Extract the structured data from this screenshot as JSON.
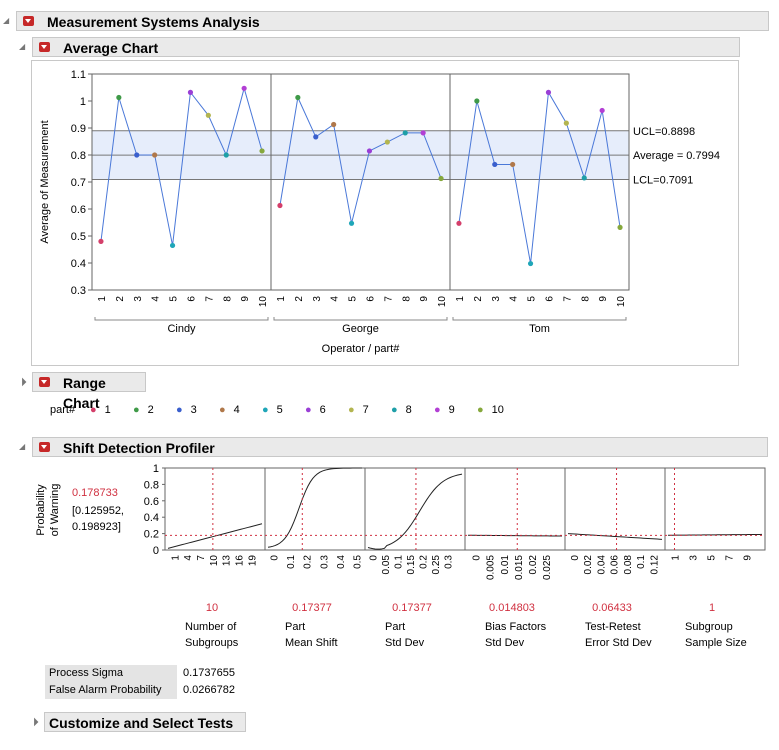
{
  "title": "Measurement Systems Analysis",
  "sections": {
    "average": "Average Chart",
    "range": "Range Chart",
    "profiler": "Shift Detection Profiler",
    "customize": "Customize and Select Tests"
  },
  "part_colors": {
    "1": "#d43f6a",
    "2": "#3f9a48",
    "3": "#3a5fcd",
    "4": "#b0784a",
    "5": "#1fa6b8",
    "6": "#9a3fd6",
    "7": "#b3b550",
    "8": "#1e9fa8",
    "9": "#b23fd4",
    "10": "#86a83c"
  },
  "legend": {
    "label": "part#",
    "items": [
      "1",
      "2",
      "3",
      "4",
      "5",
      "6",
      "7",
      "8",
      "9",
      "10"
    ]
  },
  "chart_data": {
    "type": "line",
    "ylabel": "Average of Measurement",
    "xlabel": "Operator / part#",
    "ylim": [
      0.3,
      1.1
    ],
    "yticks": [
      "0.3",
      "0.4",
      "0.5",
      "0.6",
      "0.7",
      "0.8",
      "0.9",
      "1",
      "1.1"
    ],
    "parts": [
      "1",
      "2",
      "3",
      "4",
      "5",
      "6",
      "7",
      "8",
      "9",
      "10"
    ],
    "groups": [
      {
        "name": "Cindy",
        "values": [
          0.48,
          1.013,
          0.8,
          0.8,
          0.465,
          1.032,
          0.947,
          0.8,
          1.047,
          0.815
        ]
      },
      {
        "name": "George",
        "values": [
          0.613,
          1.013,
          0.867,
          0.913,
          0.547,
          0.815,
          0.848,
          0.882,
          0.882,
          0.713
        ]
      },
      {
        "name": "Tom",
        "values": [
          0.547,
          1.0,
          0.765,
          0.765,
          0.398,
          1.032,
          0.918,
          0.715,
          0.965,
          0.532
        ]
      }
    ],
    "limits": {
      "ucl": 0.8898,
      "avg": 0.7994,
      "lcl": 0.7091,
      "ucl_label": "UCL=0.8898",
      "avg_label": "Average = 0.7994",
      "lcl_label": "LCL=0.7091"
    }
  },
  "profiler": {
    "ylabel1": "Probability",
    "ylabel2": "of Warning",
    "value": "0.178733",
    "ci1": "[0.125952,",
    "ci2": "0.198923]",
    "yticks": [
      "0",
      "0.2",
      "0.4",
      "0.6",
      "0.8",
      "1"
    ],
    "factors": [
      {
        "value": "10",
        "name1": "Number of",
        "name2": "Subgroups",
        "ticks": [
          "1",
          "4",
          "7",
          "10",
          "13",
          "16",
          "19"
        ],
        "range": [
          0,
          21
        ],
        "current": 10
      },
      {
        "value": "0.17377",
        "name1": "Part",
        "name2": "Mean Shift",
        "ticks": [
          "0",
          "0.1",
          "0.2",
          "0.3",
          "0.4",
          "0.5"
        ],
        "range": [
          -0.02,
          0.52
        ],
        "current": 0.17377
      },
      {
        "value": "0.17377",
        "name1": "Part",
        "name2": "Std Dev",
        "ticks": [
          "0",
          "0.05",
          "0.1",
          "0.15",
          "0.2",
          "0.25",
          "0.3"
        ],
        "range": [
          -0.01,
          0.35
        ],
        "current": 0.17377
      },
      {
        "value": "0.014803",
        "name1": "Bias Factors",
        "name2": "Std Dev",
        "ticks": [
          "0",
          "0.005",
          "0.01",
          "0.015",
          "0.02",
          "0.025"
        ],
        "range": [
          -0.002,
          0.03
        ],
        "current": 0.014803
      },
      {
        "value": "0.06433",
        "name1": "Test-Retest",
        "name2": "Error Std Dev",
        "ticks": [
          "0",
          "0.02",
          "0.04",
          "0.06",
          "0.08",
          "0.1",
          "0.12"
        ],
        "range": [
          -0.006,
          0.13
        ],
        "current": 0.06433
      },
      {
        "value": "1",
        "name1": "Subgroup",
        "name2": "Sample Size",
        "ticks": [
          "1",
          "3",
          "5",
          "7",
          "9"
        ],
        "range": [
          0.5,
          10.5
        ],
        "current": 1
      }
    ]
  },
  "stats": [
    {
      "label": "Process Sigma",
      "value": "0.1737655"
    },
    {
      "label": "False Alarm Probability",
      "value": "0.0266782"
    }
  ]
}
